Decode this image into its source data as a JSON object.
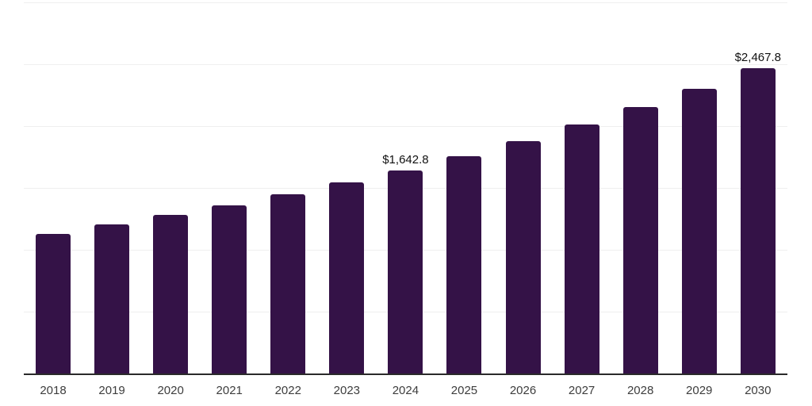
{
  "chart_data": {
    "type": "bar",
    "title": "",
    "xlabel": "",
    "ylabel": "",
    "categories": [
      "2018",
      "2019",
      "2020",
      "2021",
      "2022",
      "2023",
      "2024",
      "2025",
      "2026",
      "2027",
      "2028",
      "2029",
      "2030"
    ],
    "values": [
      1130.0,
      1206.0,
      1279.0,
      1360.0,
      1449.0,
      1545.0,
      1642.8,
      1757.8,
      1880.9,
      2012.6,
      2153.5,
      2304.3,
      2467.8
    ],
    "labeled_values": {
      "2024": "$1,642.8",
      "2030": "$2,467.8"
    },
    "ylim": [
      0,
      3000
    ],
    "gridline_interval": 500,
    "grid": "horizontal-only",
    "y_tick_labels_shown": false,
    "legend": false,
    "bar_color": "#341247",
    "axis_line_color": "#2a2a2a",
    "gridline_color": "#efefef",
    "tick_label_color": "#3d3d3d",
    "value_label_color": "#111111",
    "background_color": "#ffffff"
  }
}
